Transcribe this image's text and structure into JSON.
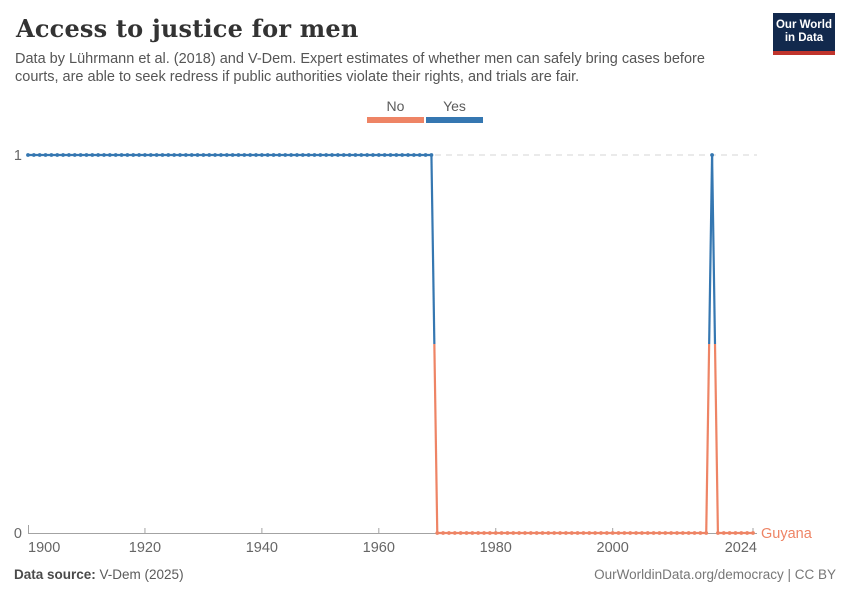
{
  "header": {
    "title": "Access to justice for men",
    "subtitle": "Data by Lührmann et al. (2018) and V-Dem. Expert estimates of whether men can safely bring cases before courts, are able to seek redress if public authorities violate their rights, and trials are fair.",
    "logo": {
      "line1": "Our World",
      "line2": "in Data",
      "bg_color": "#12294D",
      "accent_color": "#C0342C"
    }
  },
  "legend": {
    "items": [
      {
        "label": "No",
        "value": 0,
        "color": "#EE8465"
      },
      {
        "label": "Yes",
        "value": 1,
        "color": "#3577B1"
      }
    ]
  },
  "chart_data": {
    "type": "line",
    "entity": "Guyana",
    "title": "Access to justice for men",
    "xlabel": "",
    "ylabel": "",
    "xlim": [
      1900,
      2024
    ],
    "ylim": [
      0,
      1
    ],
    "x_ticks": [
      1900,
      1920,
      1940,
      1960,
      1980,
      2000,
      2024
    ],
    "y_ticks": [
      0,
      1
    ],
    "grid": "dashed line at y=1 only",
    "legend_position": "top-center",
    "markers": "one dot per year",
    "series": [
      {
        "name": "Guyana",
        "segments": [
          {
            "from": 1900,
            "to": 1969,
            "value": 1
          },
          {
            "from": 1970,
            "to": 2016,
            "value": 0
          },
          {
            "from": 2017,
            "to": 2017,
            "value": 1
          },
          {
            "from": 2018,
            "to": 2024,
            "value": 0
          }
        ]
      }
    ],
    "value_colors": {
      "0": "#EE8465",
      "1": "#3577B1"
    },
    "entity_label_color": "#EE8465",
    "axis_color": "#a3a3a3",
    "tick_label_color": "#666666",
    "gridline_color": "#d6d6d6"
  },
  "footer": {
    "source_label": "Data source:",
    "source_value": " V-Dem (2025)",
    "right_text": "OurWorldinData.org/democracy | CC BY"
  }
}
